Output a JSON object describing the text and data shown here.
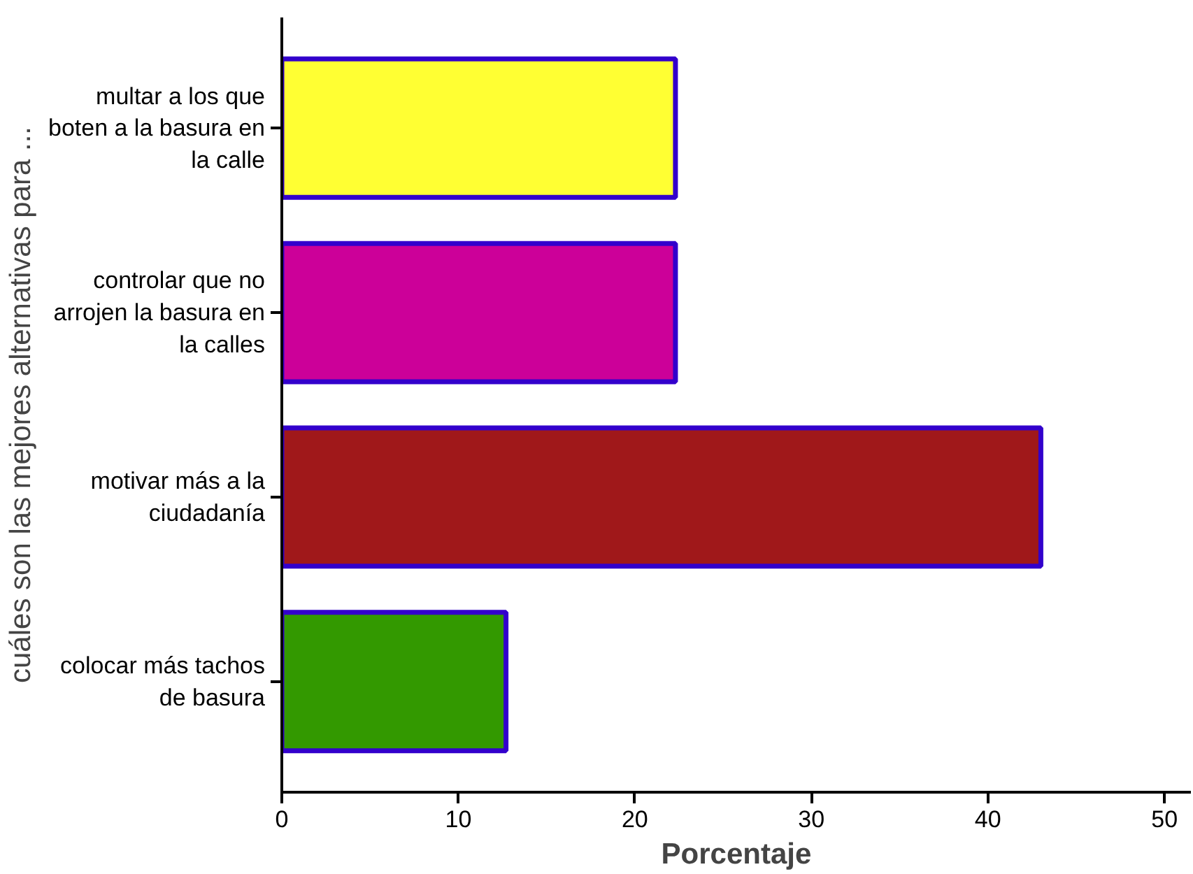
{
  "chart_data": {
    "type": "bar",
    "orientation": "horizontal",
    "categories": [
      "multar a los que boten a la basura en la calle",
      "controlar que no arrojen la basura en la calles",
      "motivar más a la ciudadanía",
      "colocar más tachos de basura"
    ],
    "values": [
      22.3,
      22.3,
      43.0,
      12.7
    ],
    "colors": [
      "#ffff33",
      "#cc0099",
      "#a0181a",
      "#339900"
    ],
    "xlabel": "Porcentaje",
    "ylabel": "cuáles son las mejores alternativas para ...",
    "xlim": [
      0,
      51.5
    ],
    "xticks": [
      0,
      10,
      20,
      30,
      40,
      50
    ],
    "grid": false
  }
}
